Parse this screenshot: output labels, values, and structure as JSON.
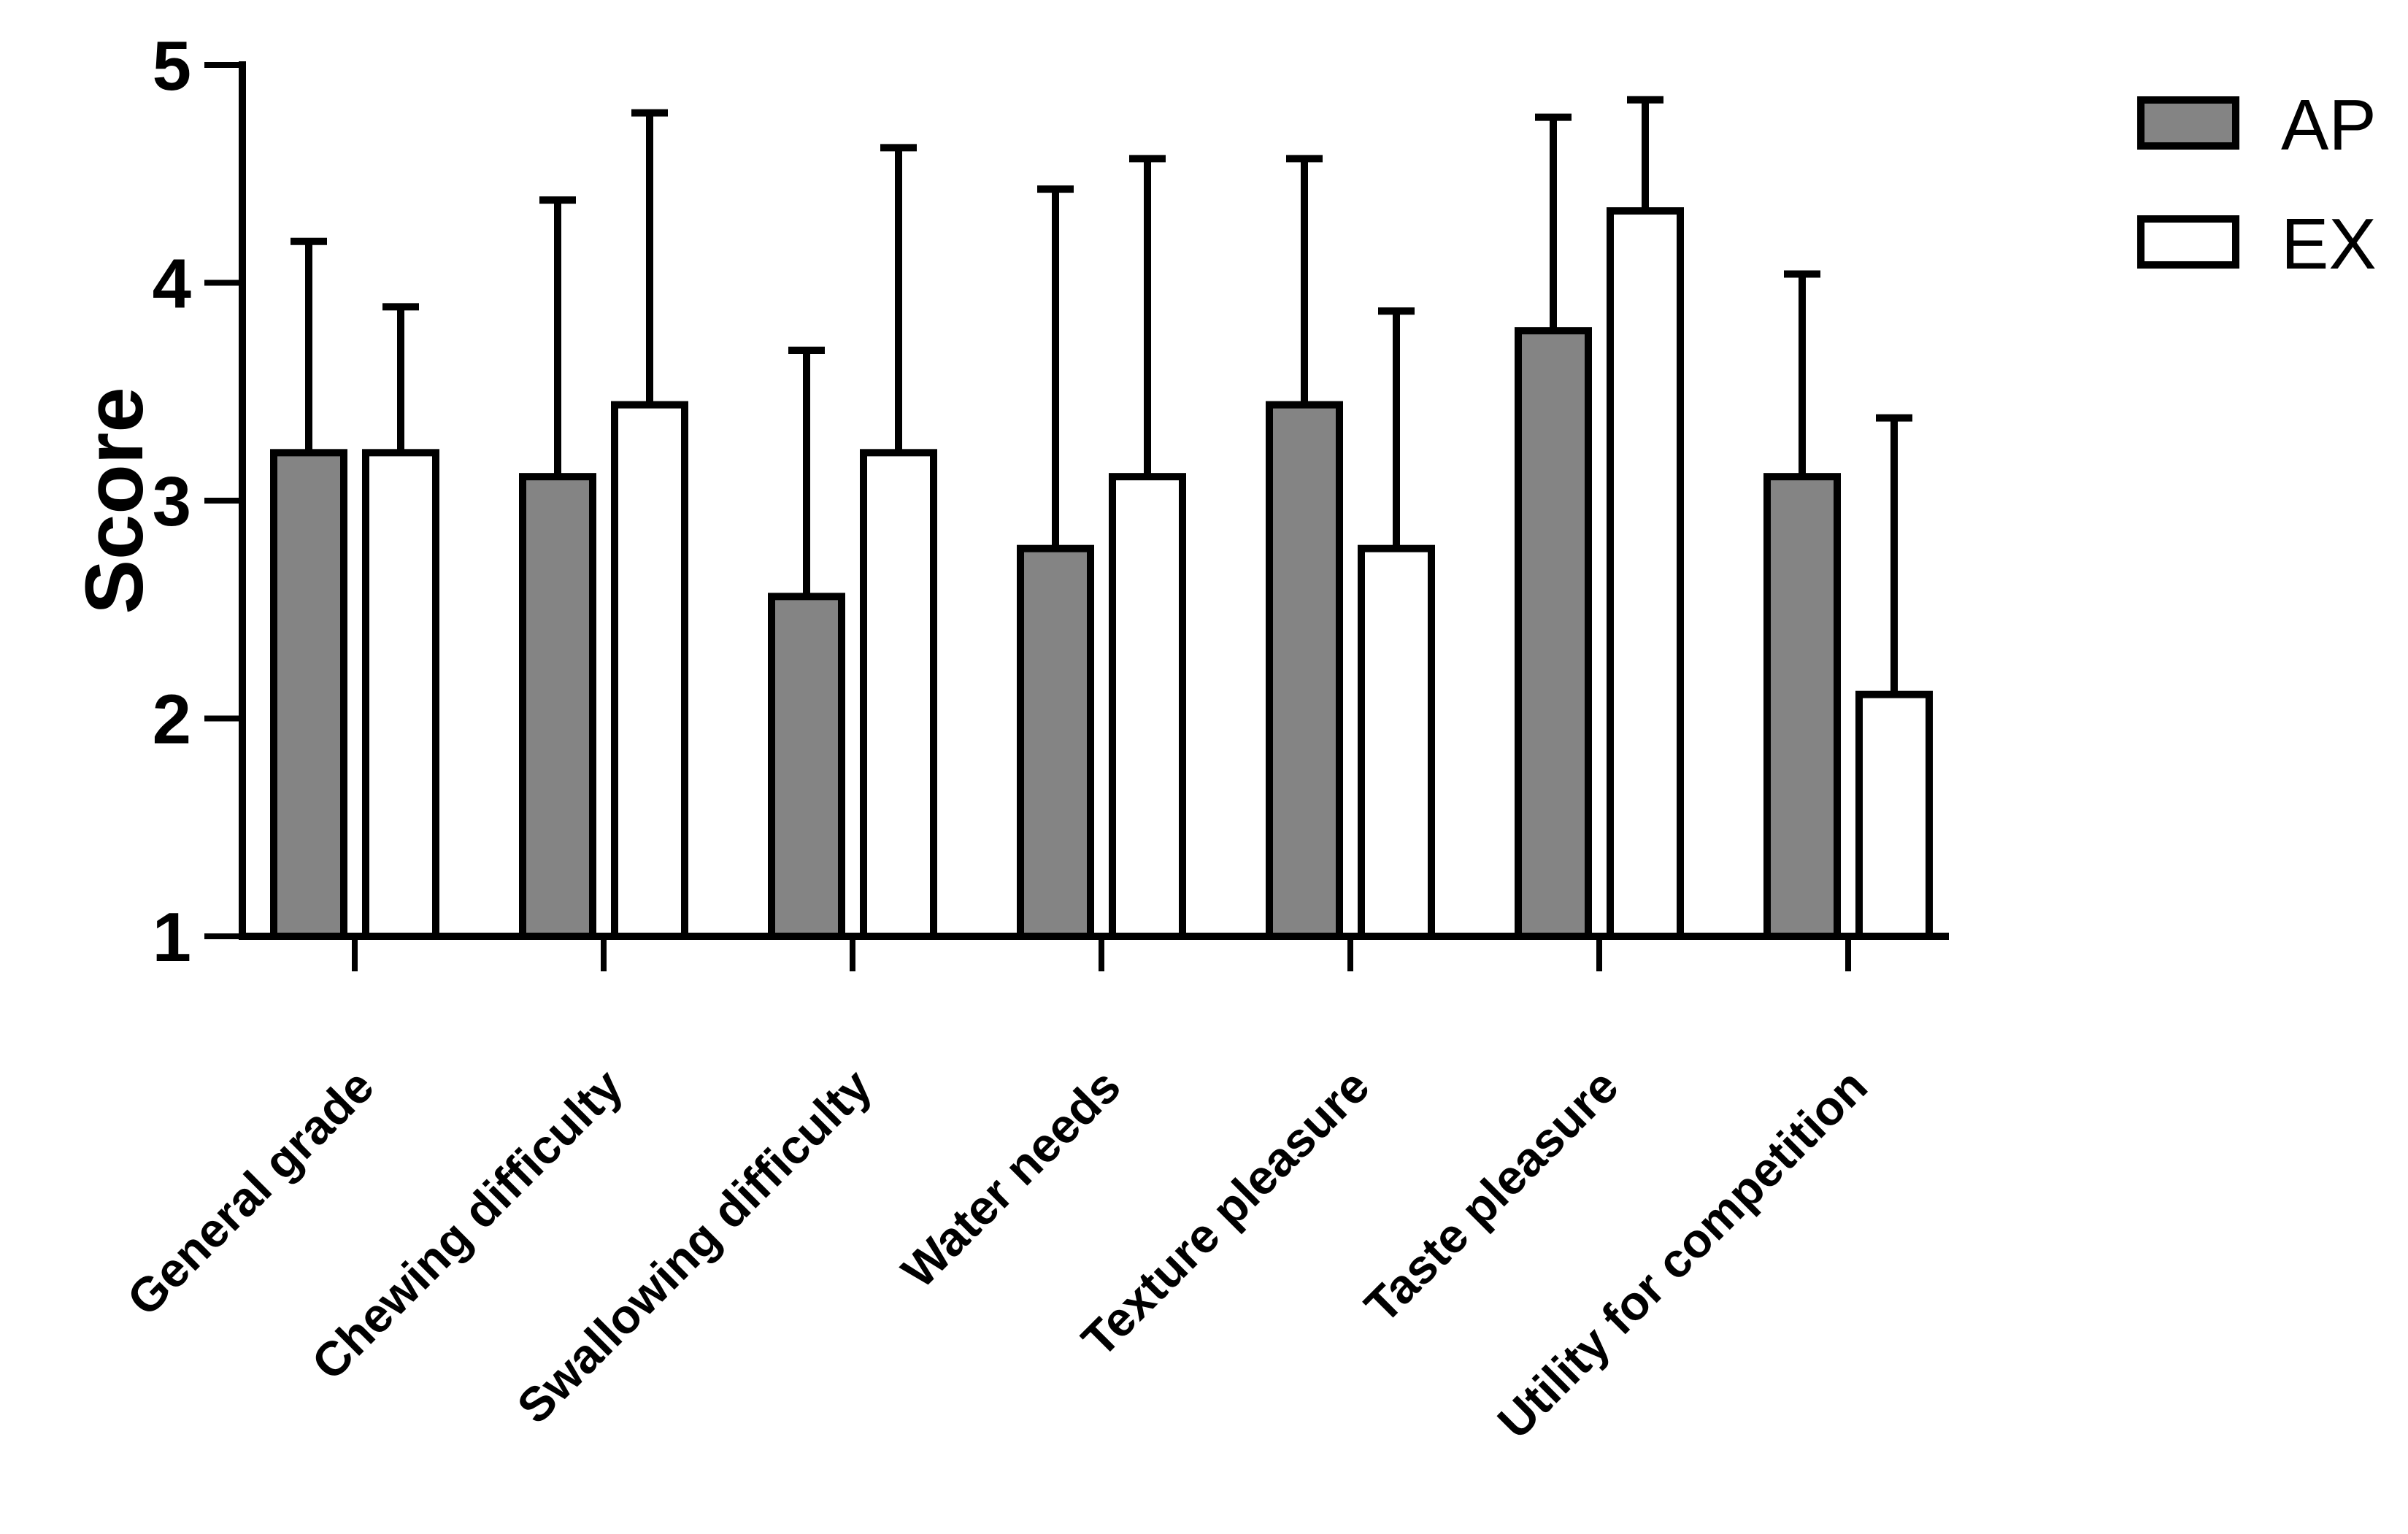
{
  "figure": {
    "background": "#ffffff",
    "foreground": "#000000",
    "bar_fill_ap": "#848484",
    "bar_fill_ex": "#ffffff"
  },
  "chart_data": {
    "type": "bar",
    "title": "",
    "xlabel": "",
    "ylabel": "Score",
    "ylim": [
      1,
      5
    ],
    "yticks": [
      1,
      2,
      3,
      4,
      5
    ],
    "grid": false,
    "error_bars": "upper_only_sd_caps",
    "legend_position": "top-right",
    "categories": [
      "General grade",
      "Chewing difficulty",
      "Swallowing difficulty",
      "Water needs",
      "Texture pleasure",
      "Taste pleasure",
      "Utility for competition"
    ],
    "series": [
      {
        "name": "AP",
        "fill": "#848484",
        "values": [
          3.22,
          3.11,
          2.56,
          2.78,
          3.44,
          3.78,
          3.11
        ],
        "errors_upper": [
          0.97,
          1.27,
          1.13,
          1.65,
          1.13,
          0.98,
          0.93
        ]
      },
      {
        "name": "EX",
        "fill": "#ffffff",
        "values": [
          3.22,
          3.44,
          3.22,
          3.11,
          2.78,
          4.33,
          2.11
        ],
        "errors_upper": [
          0.67,
          1.34,
          1.4,
          1.46,
          1.09,
          0.51,
          1.27
        ]
      }
    ]
  }
}
